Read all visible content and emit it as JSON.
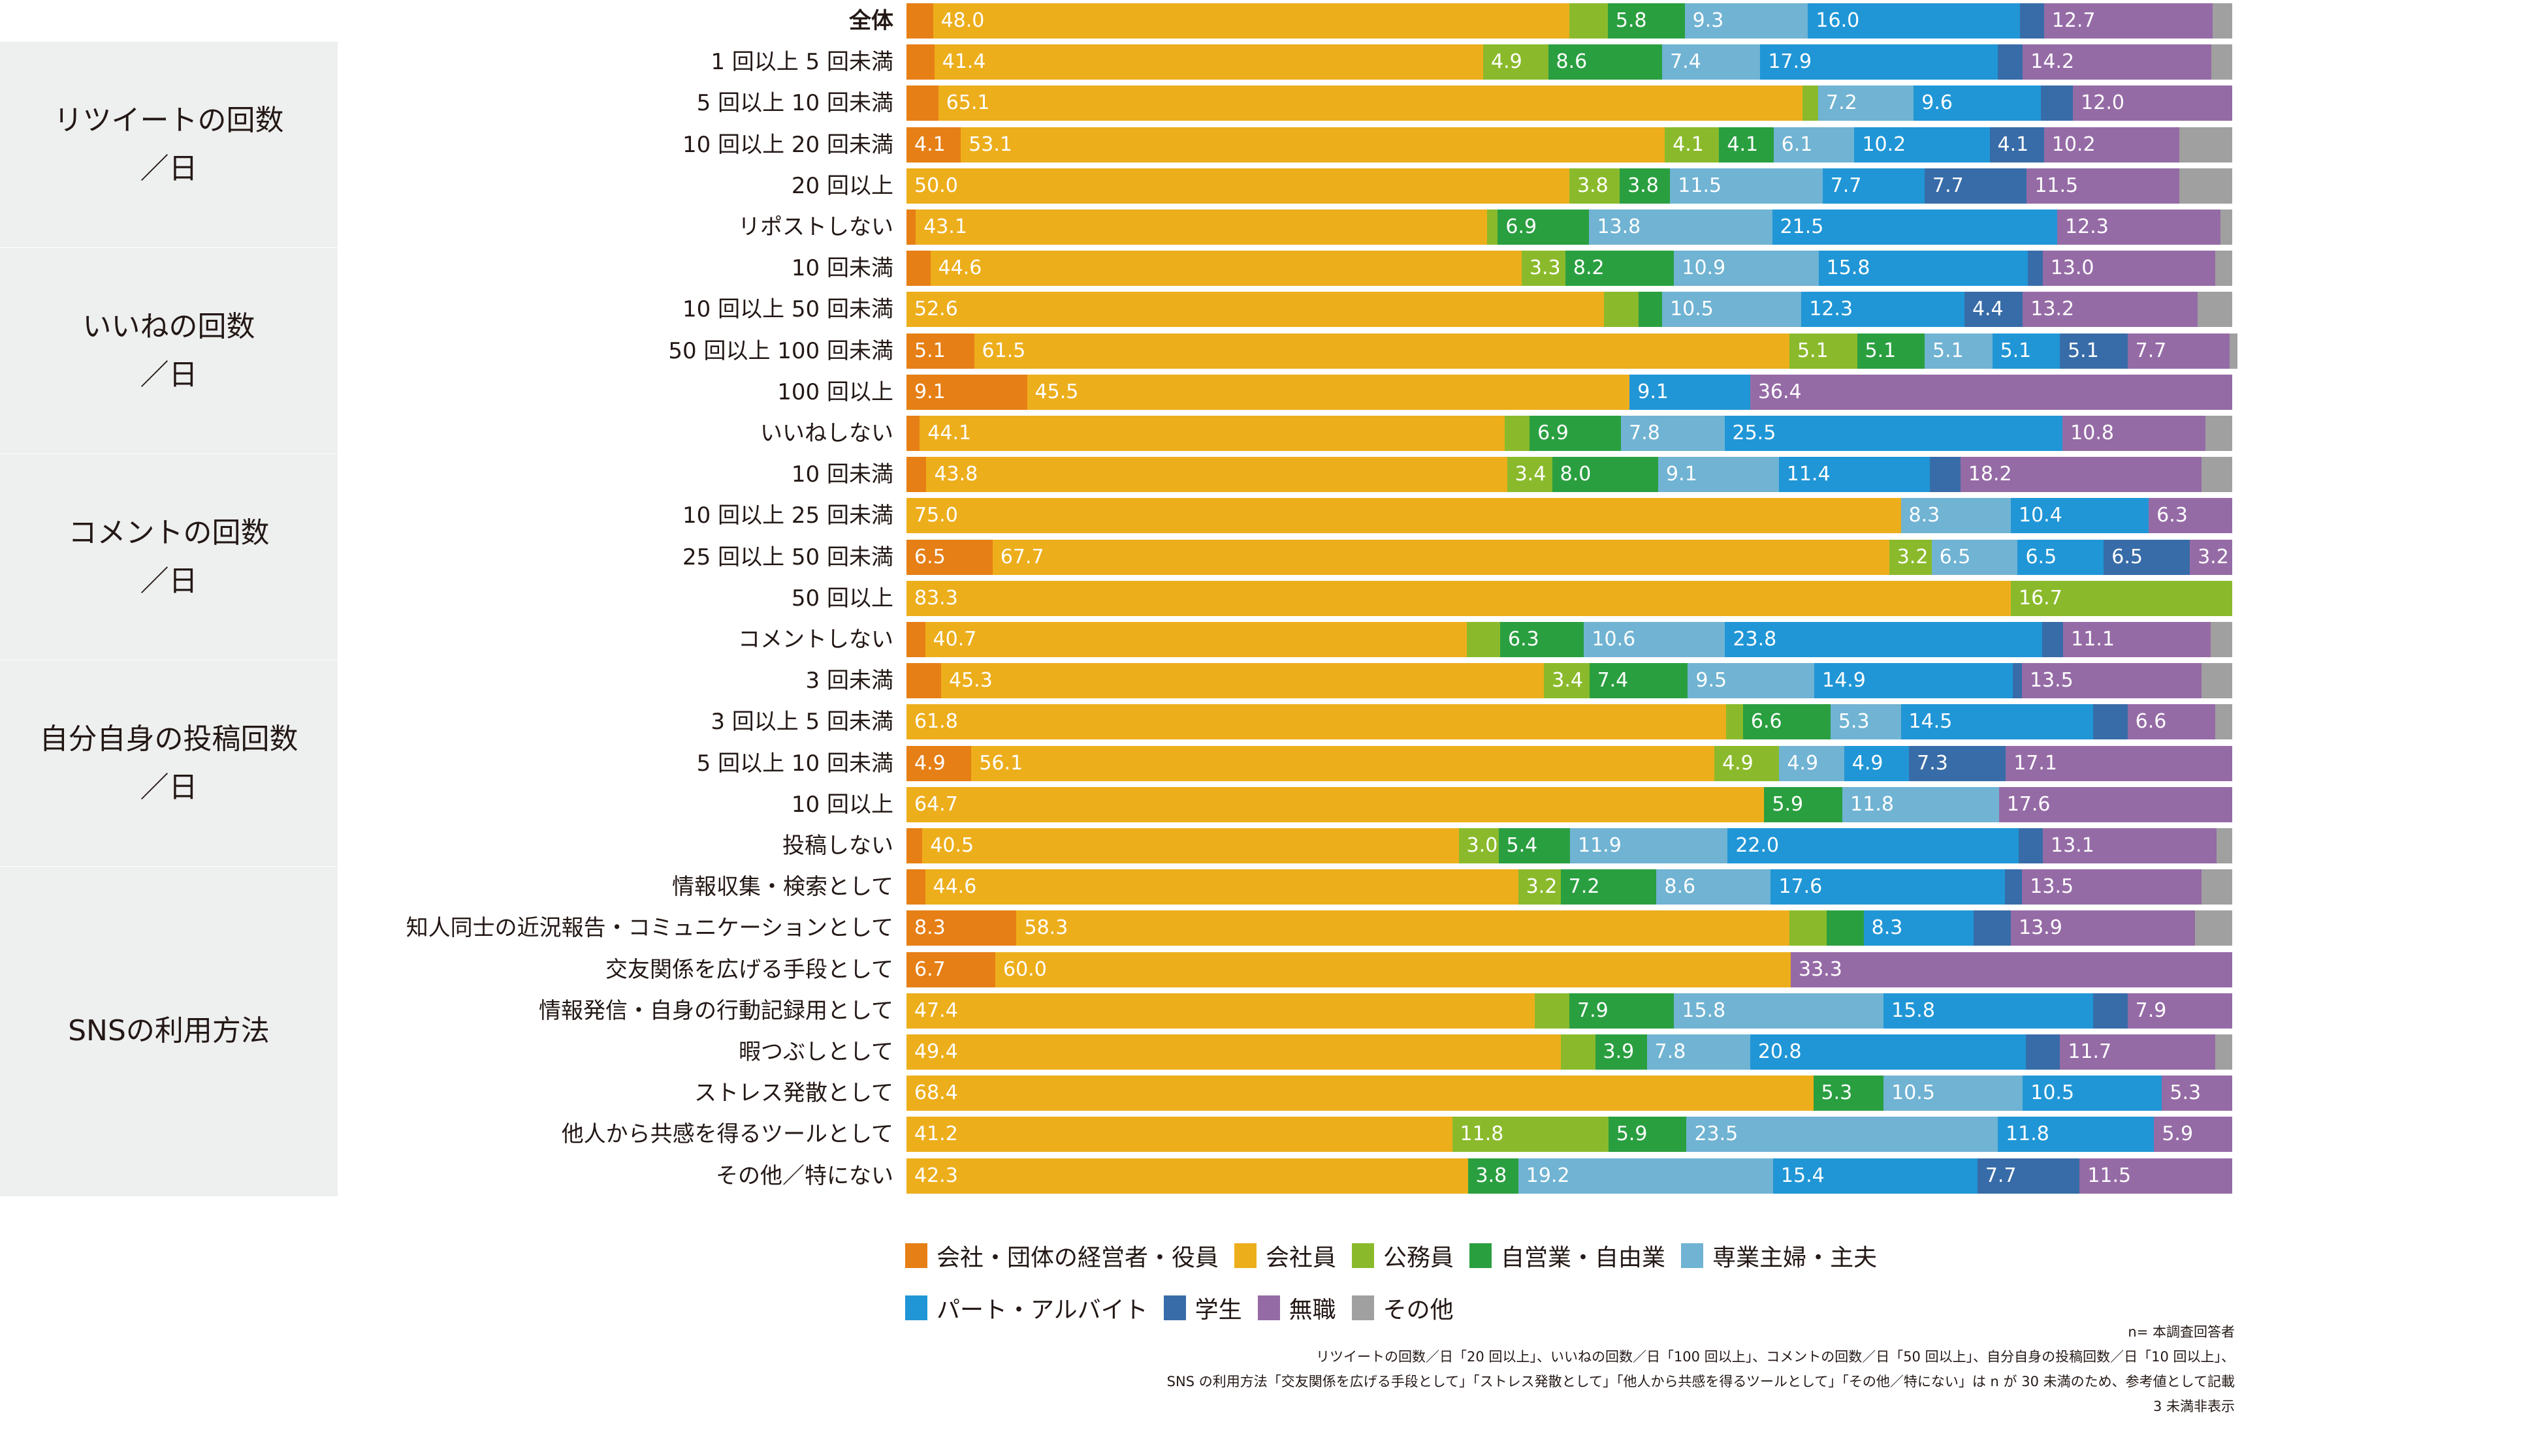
{
  "chart_data": {
    "type": "bar",
    "orientation": "horizontal",
    "stacked": "percent",
    "xlim": [
      0,
      100
    ],
    "series": [
      {
        "name": "会社・団体の経営者・役員",
        "color": "#e67f15"
      },
      {
        "name": "会社員",
        "color": "#edae1c"
      },
      {
        "name": "公務員",
        "color": "#8aba2b"
      },
      {
        "name": "自営業・自由業",
        "color": "#2a9f40"
      },
      {
        "name": "専業主婦・主夫",
        "color": "#70b3d3"
      },
      {
        "name": "パート・アルバイト",
        "color": "#2096d6"
      },
      {
        "name": "学生",
        "color": "#386ca8"
      },
      {
        "name": "無職",
        "color": "#956ba6"
      },
      {
        "name": "その他",
        "color": "#a0a0a0"
      }
    ],
    "groups": [
      {
        "label_lines": [
          "リツイートの回数",
          "／日"
        ],
        "rows": [
          1,
          5
        ]
      },
      {
        "label_lines": [
          "いいねの回数",
          "／日"
        ],
        "rows": [
          6,
          10
        ]
      },
      {
        "label_lines": [
          "コメントの回数",
          "／日"
        ],
        "rows": [
          11,
          15
        ]
      },
      {
        "label_lines": [
          "自分自身の投稿回数",
          "／日"
        ],
        "rows": [
          16,
          20
        ]
      },
      {
        "label_lines": [
          "SNSの利用方法"
        ],
        "rows": [
          21,
          28
        ]
      }
    ],
    "rows": [
      {
        "label": "全体",
        "bold": true,
        "values": [
          2.0,
          48.0,
          2.9,
          5.8,
          9.3,
          16.0,
          1.8,
          12.7,
          1.5
        ],
        "labels": [
          "",
          "48.0",
          "",
          "5.8",
          "9.3",
          "16.0",
          "",
          "12.7",
          ""
        ]
      },
      {
        "label": "1 回以上 5 回未満",
        "values": [
          2.1,
          41.4,
          4.9,
          8.6,
          7.4,
          17.9,
          1.9,
          14.2,
          1.6
        ],
        "labels": [
          "",
          "41.4",
          "4.9",
          "8.6",
          "7.4",
          "17.9",
          "",
          "14.2",
          ""
        ]
      },
      {
        "label": "5 回以上 10 回未満",
        "values": [
          2.4,
          65.1,
          1.2,
          0,
          7.2,
          9.6,
          2.4,
          12.0,
          0
        ],
        "labels": [
          "",
          "65.1",
          "",
          "",
          "7.2",
          "9.6",
          "",
          "12.0",
          ""
        ]
      },
      {
        "label": "10 回以上 20 回未満",
        "values": [
          4.1,
          53.1,
          4.1,
          4.1,
          6.1,
          10.2,
          4.1,
          10.2,
          4.0
        ],
        "labels": [
          "4.1",
          "53.1",
          "4.1",
          "4.1",
          "6.1",
          "10.2",
          "4.1",
          "10.2",
          ""
        ]
      },
      {
        "label": "20 回以上",
        "values": [
          0,
          50.0,
          3.8,
          3.8,
          11.5,
          7.7,
          7.7,
          11.5,
          4.0
        ],
        "labels": [
          "",
          "50.0",
          "3.8",
          "3.8",
          "11.5",
          "7.7",
          "7.7",
          "11.5",
          ""
        ]
      },
      {
        "label": "リポストしない",
        "values": [
          0.7,
          43.1,
          0.8,
          6.9,
          13.8,
          21.5,
          0,
          12.3,
          0.9
        ],
        "labels": [
          "",
          "43.1",
          "",
          "6.9",
          "13.8",
          "21.5",
          "",
          "12.3",
          ""
        ]
      },
      {
        "label": "10 回未満",
        "values": [
          1.8,
          44.6,
          3.3,
          8.2,
          10.9,
          15.8,
          1.1,
          13.0,
          1.3
        ],
        "labels": [
          "",
          "44.6",
          "3.3",
          "8.2",
          "10.9",
          "15.8",
          "",
          "13.0",
          ""
        ]
      },
      {
        "label": "10 回以上 50 回未満",
        "values": [
          0,
          52.6,
          2.6,
          1.8,
          10.5,
          12.3,
          4.4,
          13.2,
          2.6
        ],
        "labels": [
          "",
          "52.6",
          "",
          "",
          "10.5",
          "12.3",
          "4.4",
          "13.2",
          ""
        ]
      },
      {
        "label": "50 回以上 100 回未満",
        "values": [
          5.1,
          61.5,
          5.1,
          5.1,
          5.1,
          5.1,
          5.1,
          7.7,
          0.2
        ],
        "labels": [
          "5.1",
          "61.5",
          "5.1",
          "5.1",
          "5.1",
          "5.1",
          "5.1",
          "7.7",
          ""
        ]
      },
      {
        "label": "100 回以上",
        "values": [
          9.1,
          45.5,
          0,
          0,
          0,
          9.1,
          0,
          36.4,
          0
        ],
        "labels": [
          "9.1",
          "45.5",
          "",
          "",
          "",
          "9.1",
          "",
          "36.4",
          ""
        ]
      },
      {
        "label": "いいねしない",
        "values": [
          1.0,
          44.1,
          1.9,
          6.9,
          7.8,
          25.5,
          0,
          10.8,
          2.0
        ],
        "labels": [
          "",
          "44.1",
          "",
          "6.9",
          "7.8",
          "25.5",
          "",
          "10.8",
          ""
        ]
      },
      {
        "label": "10 回未満",
        "values": [
          1.5,
          43.8,
          3.4,
          8.0,
          9.1,
          11.4,
          2.3,
          18.2,
          2.3
        ],
        "labels": [
          "",
          "43.8",
          "3.4",
          "8.0",
          "9.1",
          "11.4",
          "",
          "18.2",
          ""
        ]
      },
      {
        "label": "10 回以上 25 回未満",
        "values": [
          0,
          75.0,
          0,
          0,
          8.3,
          10.4,
          0,
          6.3,
          0
        ],
        "labels": [
          "",
          "75.0",
          "",
          "",
          "8.3",
          "10.4",
          "",
          "6.3",
          ""
        ]
      },
      {
        "label": "25 回以上 50 回未満",
        "values": [
          6.5,
          67.7,
          3.2,
          0,
          6.5,
          6.5,
          6.5,
          3.2,
          0
        ],
        "labels": [
          "6.5",
          "67.7",
          "3.2",
          "",
          "6.5",
          "6.5",
          "6.5",
          "3.2",
          ""
        ]
      },
      {
        "label": "50 回以上",
        "values": [
          0,
          83.3,
          16.7,
          0,
          0,
          0,
          0,
          0,
          0
        ],
        "labels": [
          "",
          "83.3",
          "16.7",
          "",
          "",
          "",
          "",
          "",
          ""
        ]
      },
      {
        "label": "コメントしない",
        "values": [
          1.4,
          40.7,
          2.5,
          6.3,
          10.6,
          23.8,
          1.6,
          11.1,
          1.6
        ],
        "labels": [
          "",
          "40.7",
          "",
          "6.3",
          "10.6",
          "23.8",
          "",
          "11.1",
          ""
        ]
      },
      {
        "label": "3 回未満",
        "values": [
          2.6,
          45.3,
          3.4,
          7.4,
          9.5,
          14.9,
          0.7,
          13.5,
          2.3
        ],
        "labels": [
          "",
          "45.3",
          "3.4",
          "7.4",
          "9.5",
          "14.9",
          "",
          "13.5",
          ""
        ]
      },
      {
        "label": "3 回以上 5 回未満",
        "values": [
          0,
          61.8,
          1.3,
          6.6,
          5.3,
          14.5,
          2.6,
          6.6,
          1.3
        ],
        "labels": [
          "",
          "61.8",
          "",
          "6.6",
          "5.3",
          "14.5",
          "",
          "6.6",
          ""
        ]
      },
      {
        "label": "5 回以上 10 回未満",
        "values": [
          4.9,
          56.1,
          4.9,
          0,
          4.9,
          4.9,
          7.3,
          17.1,
          0
        ],
        "labels": [
          "4.9",
          "56.1",
          "4.9",
          "",
          "4.9",
          "4.9",
          "7.3",
          "17.1",
          ""
        ]
      },
      {
        "label": "10 回以上",
        "values": [
          0,
          64.7,
          0,
          5.9,
          11.8,
          0,
          0,
          17.6,
          0
        ],
        "labels": [
          "",
          "64.7",
          "",
          "5.9",
          "11.8",
          "",
          "",
          "17.6",
          ""
        ]
      },
      {
        "label": "投稿しない",
        "values": [
          1.2,
          40.5,
          3.0,
          5.4,
          11.9,
          22.0,
          1.8,
          13.1,
          1.2
        ],
        "labels": [
          "",
          "40.5",
          "3.0",
          "5.4",
          "11.9",
          "22.0",
          "",
          "13.1",
          ""
        ]
      },
      {
        "label": "情報収集・検索として",
        "values": [
          1.4,
          44.6,
          3.2,
          7.2,
          8.6,
          17.6,
          1.3,
          13.5,
          2.3
        ],
        "labels": [
          "",
          "44.6",
          "3.2",
          "7.2",
          "8.6",
          "17.6",
          "",
          "13.5",
          ""
        ]
      },
      {
        "label": "知人同士の近況報告・コミュニケーションとして",
        "values": [
          8.3,
          58.3,
          2.8,
          2.8,
          0,
          8.3,
          2.8,
          13.9,
          2.8
        ],
        "labels": [
          "8.3",
          "58.3",
          "",
          "",
          "",
          "8.3",
          "",
          "13.9",
          ""
        ]
      },
      {
        "label": "交友関係を広げる手段として",
        "values": [
          6.7,
          60.0,
          0,
          0,
          0,
          0,
          0,
          33.3,
          0
        ],
        "labels": [
          "6.7",
          "60.0",
          "",
          "",
          "",
          "",
          "",
          "33.3",
          ""
        ]
      },
      {
        "label": "情報発信・自身の行動記録用として",
        "values": [
          0,
          47.4,
          2.6,
          7.9,
          15.8,
          15.8,
          2.6,
          7.9,
          0
        ],
        "labels": [
          "",
          "47.4",
          "",
          "7.9",
          "15.8",
          "15.8",
          "",
          "7.9",
          ""
        ]
      },
      {
        "label": "暇つぶしとして",
        "values": [
          0,
          49.4,
          2.6,
          3.9,
          7.8,
          20.8,
          2.6,
          11.7,
          1.3
        ],
        "labels": [
          "",
          "49.4",
          "",
          "3.9",
          "7.8",
          "20.8",
          "",
          "11.7",
          ""
        ]
      },
      {
        "label": "ストレス発散として",
        "values": [
          0,
          68.4,
          0,
          5.3,
          10.5,
          10.5,
          0,
          5.3,
          0
        ],
        "labels": [
          "",
          "68.4",
          "",
          "5.3",
          "10.5",
          "10.5",
          "",
          "5.3",
          ""
        ]
      },
      {
        "label": "他人から共感を得るツールとして",
        "values": [
          0,
          41.2,
          11.8,
          5.9,
          23.5,
          11.8,
          0,
          5.9,
          0
        ],
        "labels": [
          "",
          "41.2",
          "11.8",
          "5.9",
          "23.5",
          "11.8",
          "",
          "5.9",
          ""
        ]
      },
      {
        "label": "その他／特にない",
        "values": [
          0,
          42.3,
          0,
          3.8,
          19.2,
          15.4,
          7.7,
          11.5,
          0
        ],
        "labels": [
          "",
          "42.3",
          "",
          "3.8",
          "19.2",
          "15.4",
          "7.7",
          "11.5",
          ""
        ]
      }
    ],
    "legend_position": "bottom"
  },
  "notes": [
    "n= 本調査回答者",
    "リツイートの回数／日「20 回以上」、いいねの回数／日「100 回以上」、コメントの回数／日「50 回以上」、自分自身の投稿回数／日「10 回以上」、",
    "SNS の利用方法「交友関係を広げる手段として」「ストレス発散として」「他人から共感を得るツールとして」「その他／特にない」は n が 30 未満のため、参考値として記載",
    "3 未満非表示"
  ]
}
